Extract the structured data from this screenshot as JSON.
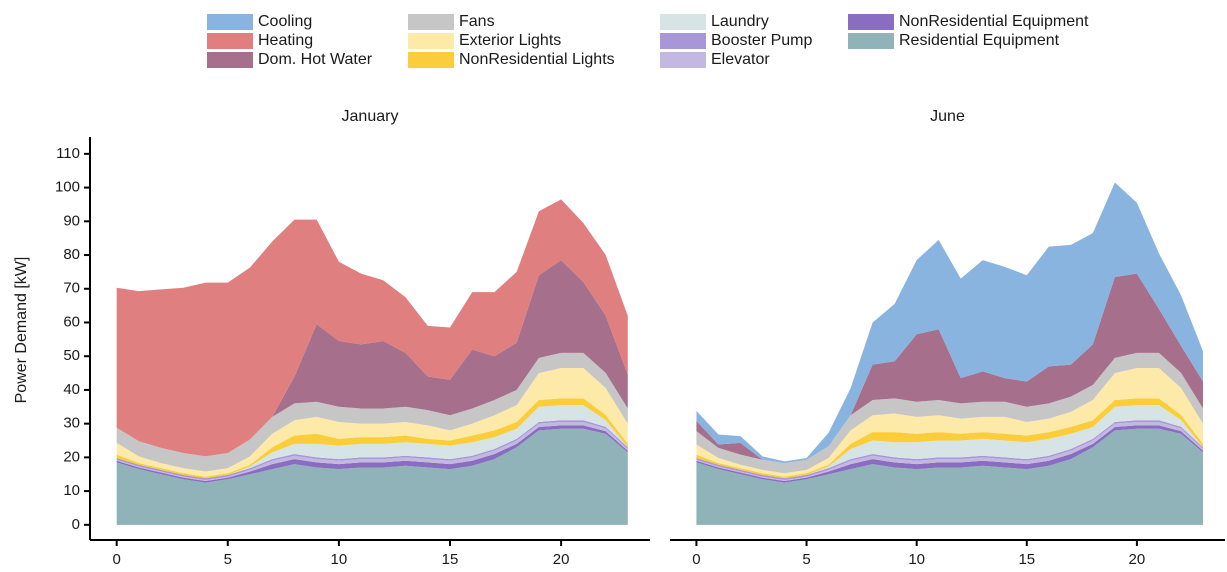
{
  "chart_data": [
    {
      "type": "area",
      "title": "January",
      "y_label": "Power Demand [kW]",
      "x": [
        0,
        1,
        2,
        3,
        4,
        5,
        6,
        7,
        8,
        9,
        10,
        11,
        12,
        13,
        14,
        15,
        16,
        17,
        18,
        19,
        20,
        21,
        22,
        23
      ],
      "xlim": [
        -1.2,
        24
      ],
      "xticks": [
        0,
        5,
        10,
        15,
        20
      ],
      "ylim": [
        -4.5,
        115
      ],
      "yticks": [
        0,
        10,
        20,
        30,
        40,
        50,
        60,
        70,
        80,
        90,
        100,
        110
      ],
      "series": [
        {
          "name": "Cooling",
          "color": "#89b4e0",
          "values": [
            0,
            0,
            0,
            0,
            0,
            0,
            0,
            0,
            0,
            0,
            0,
            0,
            0,
            0,
            0,
            0,
            0,
            0,
            0,
            0,
            0,
            0,
            0,
            0
          ]
        },
        {
          "name": "Heating",
          "color": "#e07f7f",
          "values": [
            41.5,
            44.5,
            47,
            49,
            51.5,
            50.5,
            51,
            52,
            46.5,
            31,
            23.5,
            21,
            18,
            16.5,
            15,
            15.5,
            17,
            19,
            21,
            19,
            18,
            17.5,
            18,
            17.5
          ]
        },
        {
          "name": "Dom. Hot Water",
          "color": "#a66f8c",
          "values": [
            0,
            0,
            0,
            0,
            0,
            0,
            0,
            0,
            8,
            23,
            19.5,
            19,
            20,
            16,
            10,
            10.5,
            17.5,
            13,
            14,
            24.5,
            27.5,
            21,
            17,
            10
          ]
        },
        {
          "name": "Fans",
          "color": "#c6c6c6",
          "values": [
            4.5,
            4.5,
            4.5,
            4.5,
            4.5,
            4.5,
            5,
            5,
            5,
            4.5,
            4.5,
            4.5,
            4.5,
            4.5,
            4.5,
            4.5,
            4.5,
            4.5,
            4.5,
            4.5,
            4.5,
            4.5,
            4.5,
            4.5
          ]
        },
        {
          "name": "Exterior Lights",
          "color": "#fde9a8",
          "values": [
            3.5,
            2,
            1.5,
            1.5,
            1.5,
            1.5,
            2.5,
            4,
            4.5,
            5,
            5,
            4,
            4,
            4,
            4,
            3,
            3.5,
            4.5,
            5,
            8,
            9,
            9,
            8,
            6
          ]
        },
        {
          "name": "NonResidential Lights",
          "color": "#fbcd3a",
          "values": [
            1,
            0.5,
            0.5,
            0.5,
            0.5,
            0.5,
            0.5,
            1.5,
            2.5,
            3,
            2,
            2,
            2,
            2,
            1.5,
            1.5,
            2,
            2,
            2,
            2,
            2,
            2,
            1.5,
            1
          ]
        },
        {
          "name": "Laundry",
          "color": "#d6e4e6",
          "values": [
            0,
            0,
            0,
            0,
            0,
            0,
            0.5,
            2,
            3,
            4,
            4,
            4,
            4,
            4,
            4,
            4,
            4,
            3.5,
            3,
            4.5,
            4.5,
            4.5,
            2,
            0
          ]
        },
        {
          "name": "Booster Pump",
          "color": "#a897d8",
          "values": [
            0.5,
            0.5,
            0.5,
            0.5,
            0.5,
            0.5,
            0.5,
            0.5,
            0.5,
            0.5,
            0.5,
            0.5,
            0.5,
            0.5,
            0.5,
            0.5,
            0.5,
            0.5,
            0.5,
            0.5,
            0.5,
            0.5,
            0.5,
            0.5
          ]
        },
        {
          "name": "Elevator",
          "color": "#c3b8e0",
          "values": [
            0.3,
            0.3,
            0.3,
            0.3,
            0.3,
            0.3,
            0.5,
            1,
            1,
            1,
            1,
            1,
            1,
            1,
            1,
            1,
            1,
            1,
            1,
            1,
            1,
            1,
            0.8,
            0.5
          ]
        },
        {
          "name": "NonResidential Equipment",
          "color": "#8a6cc0",
          "values": [
            0.5,
            0.5,
            0.5,
            0.5,
            0.5,
            0.5,
            0.8,
            1.5,
            1.5,
            1.5,
            1.5,
            1.5,
            1.5,
            1.5,
            1.5,
            1.5,
            1.5,
            1.5,
            1,
            1,
            1,
            1,
            0.8,
            0.5
          ]
        },
        {
          "name": "Residential Equipment",
          "color": "#8fb3b8",
          "values": [
            18.5,
            16.5,
            15,
            13.5,
            12.5,
            13.5,
            15,
            16.5,
            18,
            17,
            16.5,
            17,
            17,
            17.5,
            17,
            16.5,
            17.5,
            19.5,
            23,
            28,
            28.5,
            28.5,
            27,
            21.5
          ]
        }
      ]
    },
    {
      "type": "area",
      "title": "June",
      "x": [
        0,
        1,
        2,
        3,
        4,
        5,
        6,
        7,
        8,
        9,
        10,
        11,
        12,
        13,
        14,
        15,
        16,
        17,
        18,
        19,
        20,
        21,
        22,
        23
      ],
      "xlim": [
        -1.2,
        24
      ],
      "xticks": [
        0,
        5,
        10,
        15,
        20
      ],
      "ylim": [
        -4.5,
        115
      ],
      "series": [
        {
          "name": "Cooling",
          "color": "#89b4e0",
          "values": [
            3,
            3,
            2,
            1,
            0.5,
            0.5,
            4,
            8,
            12.5,
            17,
            22,
            26.5,
            29.5,
            33,
            33,
            31.5,
            35.5,
            35.5,
            33,
            28,
            21,
            16.5,
            15,
            9
          ]
        },
        {
          "name": "Heating",
          "color": "#e07f7f",
          "values": [
            0,
            0,
            0,
            0,
            0,
            0,
            0,
            0,
            0,
            0,
            0,
            0,
            0,
            0,
            0,
            0,
            0,
            0,
            0,
            0,
            0,
            0,
            0,
            0
          ]
        },
        {
          "name": "Dom. Hot Water",
          "color": "#a66f8c",
          "values": [
            3,
            1,
            3.5,
            0,
            0,
            0,
            0,
            0,
            10.5,
            11,
            20,
            21,
            7.5,
            9,
            7,
            7.5,
            11,
            9.5,
            12,
            24,
            23.5,
            13,
            8,
            8
          ]
        },
        {
          "name": "Fans",
          "color": "#c6c6c6",
          "values": [
            4,
            3,
            3,
            3,
            3,
            3,
            3.5,
            4.5,
            4.5,
            4.5,
            4.5,
            4.5,
            4.5,
            4.5,
            4.5,
            4.5,
            4.5,
            4.5,
            4.5,
            4.5,
            4.5,
            4.5,
            4.5,
            4.5
          ]
        },
        {
          "name": "Exterior Lights",
          "color": "#fde9a8",
          "values": [
            3,
            1.5,
            1,
            1,
            1,
            1,
            2,
            4,
            5,
            5.5,
            5,
            5,
            4.5,
            4.5,
            5,
            4,
            4,
            4.5,
            6,
            8,
            9,
            9,
            8,
            6
          ]
        },
        {
          "name": "NonResidential Lights",
          "color": "#fbcd3a",
          "values": [
            1,
            0.5,
            0.5,
            0.5,
            0.5,
            0.5,
            0.5,
            1.5,
            2.5,
            3,
            2.5,
            2.5,
            2,
            2,
            2,
            2,
            2,
            2,
            2,
            2,
            2,
            2,
            1.5,
            1
          ]
        },
        {
          "name": "Laundry",
          "color": "#d6e4e6",
          "values": [
            0,
            0,
            0,
            0,
            0,
            0,
            0.5,
            3,
            4,
            4.5,
            5,
            5,
            5,
            5,
            5,
            5,
            5,
            4.5,
            3.5,
            4.5,
            4.5,
            4.5,
            2,
            0
          ]
        },
        {
          "name": "Booster Pump",
          "color": "#a897d8",
          "values": [
            0.5,
            0.5,
            0.5,
            0.5,
            0.5,
            0.5,
            0.5,
            0.5,
            0.5,
            0.5,
            0.5,
            0.5,
            0.5,
            0.5,
            0.5,
            0.5,
            0.5,
            0.5,
            0.5,
            0.5,
            0.5,
            0.5,
            0.5,
            0.5
          ]
        },
        {
          "name": "Elevator",
          "color": "#c3b8e0",
          "values": [
            0.3,
            0.3,
            0.3,
            0.3,
            0.3,
            0.3,
            0.5,
            1,
            1,
            1,
            1,
            1,
            1,
            1,
            1,
            1,
            1,
            1,
            1,
            1,
            1,
            1,
            0.8,
            0.5
          ]
        },
        {
          "name": "NonResidential Equipment",
          "color": "#8a6cc0",
          "values": [
            0.5,
            0.5,
            0.5,
            0.5,
            0.5,
            0.5,
            0.8,
            1.5,
            1.5,
            1.5,
            1.5,
            1.5,
            1.5,
            1.5,
            1.5,
            1.5,
            1.5,
            1.5,
            1,
            1,
            1,
            1,
            0.8,
            0.5
          ]
        },
        {
          "name": "Residential Equipment",
          "color": "#8fb3b8",
          "values": [
            18.5,
            16.5,
            15,
            13.5,
            12.5,
            13.5,
            15,
            16.5,
            18,
            17,
            16.5,
            17,
            17,
            17.5,
            17,
            16.5,
            17.5,
            19.5,
            23,
            28,
            28.5,
            28.5,
            27,
            21.5
          ]
        }
      ]
    }
  ]
}
